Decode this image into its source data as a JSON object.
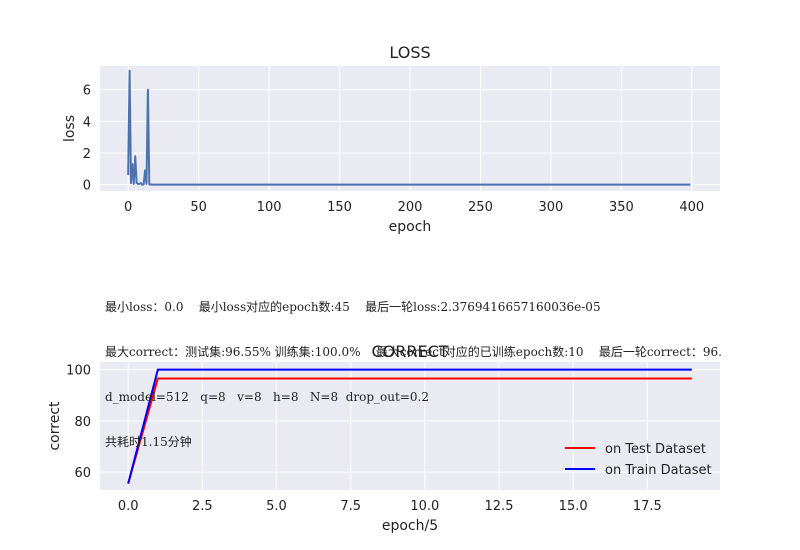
{
  "chart_data": [
    {
      "type": "line",
      "title": "LOSS",
      "xlabel": "epoch",
      "ylabel": "loss",
      "xlim": [
        -20,
        420
      ],
      "ylim": [
        -0.4,
        7.5
      ],
      "xticks": [
        0,
        50,
        100,
        150,
        200,
        250,
        300,
        350,
        400
      ],
      "yticks": [
        0,
        2,
        4,
        6
      ],
      "grid": true,
      "series": [
        {
          "color": "#4c72b0",
          "x": [
            0,
            1,
            2,
            3,
            4,
            5,
            6,
            7,
            8,
            9,
            10,
            11,
            12,
            13,
            14,
            15,
            16,
            17,
            18,
            19,
            20,
            21,
            22,
            23,
            24,
            25,
            30,
            40,
            45,
            60,
            100,
            150,
            200,
            250,
            300,
            350,
            399
          ],
          "y": [
            0.6,
            7.2,
            0.1,
            1.3,
            0.05,
            1.8,
            0.1,
            0.05,
            0.05,
            0.1,
            0.0,
            0.02,
            0.9,
            0.05,
            6.0,
            0.02,
            0.01,
            0.0,
            0.0,
            0.0,
            0.0,
            0.0,
            0.0,
            0.0,
            0.0,
            0.0,
            0.0,
            0.0,
            0.0,
            0.0,
            0.0,
            0.0,
            0.0,
            0.0,
            0.0,
            0.0,
            0.0
          ]
        }
      ]
    },
    {
      "type": "line",
      "title": "CORRECT",
      "xlabel": "epoch/5",
      "ylabel": "correct",
      "xlim": [
        -0.95,
        19.95
      ],
      "ylim": [
        53,
        103
      ],
      "xticks": [
        0.0,
        2.5,
        5.0,
        7.5,
        10.0,
        12.5,
        15.0,
        17.5
      ],
      "xtick_labels": [
        "0.0",
        "2.5",
        "5.0",
        "7.5",
        "10.0",
        "12.5",
        "15.0",
        "17.5"
      ],
      "yticks": [
        60,
        80,
        100
      ],
      "grid": true,
      "legend_position": "lower-right",
      "series": [
        {
          "name": "on Test Dataset",
          "color": "#ff0000",
          "x": [
            0,
            1,
            2,
            3,
            4,
            5,
            6,
            7,
            8,
            9,
            10,
            11,
            12,
            13,
            14,
            15,
            16,
            17,
            18,
            19
          ],
          "y": [
            55.5,
            96.55,
            96.55,
            96.55,
            96.55,
            96.55,
            96.55,
            96.55,
            96.55,
            96.55,
            96.55,
            96.55,
            96.55,
            96.55,
            96.55,
            96.55,
            96.55,
            96.55,
            96.55,
            96.55
          ]
        },
        {
          "name": "on Train Dataset",
          "color": "#0000ff",
          "x": [
            0,
            1,
            2,
            3,
            4,
            5,
            6,
            7,
            8,
            9,
            10,
            11,
            12,
            13,
            14,
            15,
            16,
            17,
            18,
            19
          ],
          "y": [
            55.5,
            100.0,
            100.0,
            100.0,
            100.0,
            100.0,
            100.0,
            100.0,
            100.0,
            100.0,
            100.0,
            100.0,
            100.0,
            100.0,
            100.0,
            100.0,
            100.0,
            100.0,
            100.0,
            100.0
          ]
        }
      ]
    }
  ],
  "info_text": {
    "line1": "最小loss：0.0    最小loss对应的epoch数:45    最后一轮loss:2.3769416657160036e-05",
    "line2": "最大correct：测试集:96.55% 训练集:100.0%    最大correct对应的已训练epoch数:10    最后一轮correct：96.",
    "line3": "d_model=512   q=8   v=8   h=8   N=8  drop_out=0.2",
    "line4": "共耗时1.15分钟"
  },
  "colors": {
    "plot_background": "#eaeaf2",
    "grid": "#ffffff"
  }
}
